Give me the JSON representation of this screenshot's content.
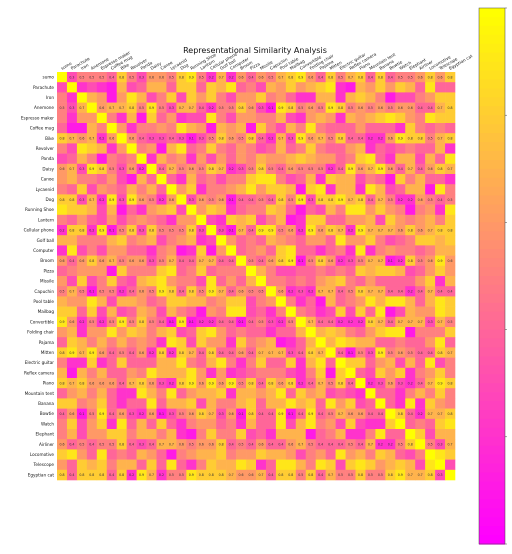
{
  "chart_data": {
    "type": "heatmap",
    "title": "Representational Similarity Analysis",
    "labels": [
      "sumo",
      "Parachute",
      "Iron",
      "Anemone",
      "Espresso maker",
      "Coffee mug",
      "Bike",
      "Revolver",
      "Panda",
      "Daisy",
      "Canoe",
      "Lycaenid",
      "Dog",
      "Running Shoe",
      "Lantern",
      "Cellular phone",
      "Golf ball",
      "Computer",
      "Broom",
      "Pizza",
      "Missile",
      "Capuchin",
      "Pool table",
      "Mailbag",
      "Convertible",
      "Folding chair",
      "Pajama",
      "Mitten",
      "Electric guitar",
      "Reflex camera",
      "Piano",
      "Mountain tent",
      "Banana",
      "Bowtie",
      "Watch",
      "Elephant",
      "Airliner",
      "Locomotive",
      "Telescope",
      "Egyptian cat"
    ],
    "value_range": [
      0,
      1
    ],
    "diagonal_value": 1.0,
    "cell_annotations": true,
    "colormap": "spring",
    "colorbar": true,
    "grid": false,
    "values_note_seed": 20240611
  }
}
